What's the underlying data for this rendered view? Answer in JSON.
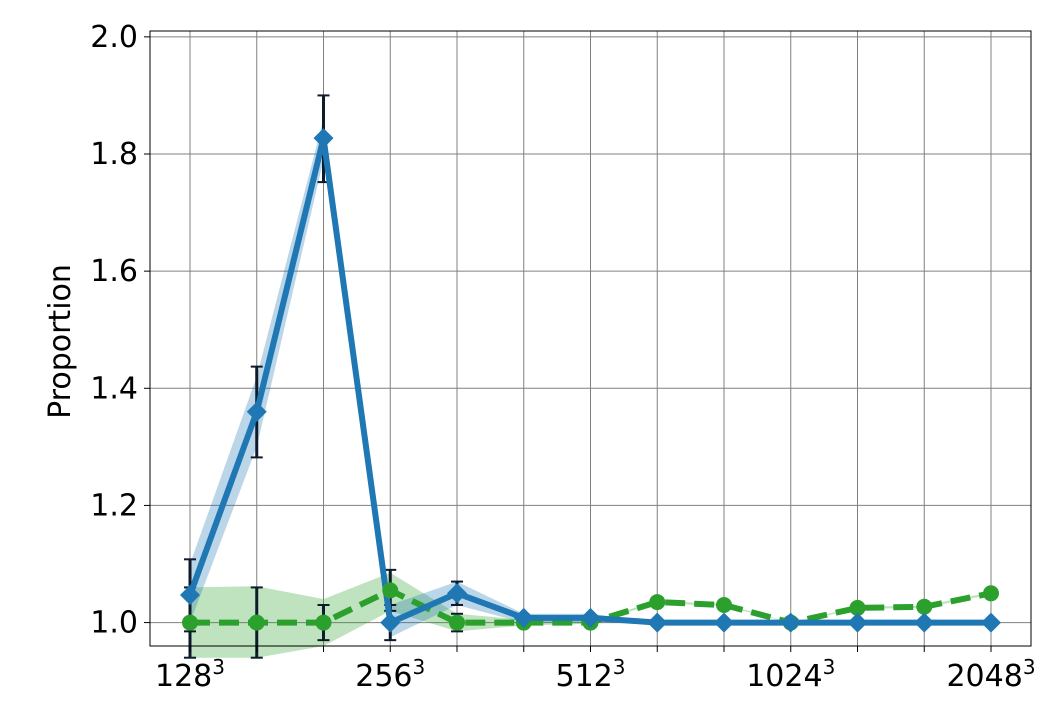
{
  "chart_data": {
    "type": "line",
    "title": "",
    "xlabel": "",
    "ylabel": "Proportion",
    "ylim": [
      0.96,
      2.01
    ],
    "yticks": [
      "1.0",
      "1.2",
      "1.4",
      "1.6",
      "1.8",
      "2.0"
    ],
    "ytick_values": [
      1.0,
      1.2,
      1.4,
      1.6,
      1.8,
      2.0
    ],
    "xtick_labels": [
      {
        "base": "128",
        "exp": "3",
        "index": 0
      },
      {
        "base": "256",
        "exp": "3",
        "index": 3
      },
      {
        "base": "512",
        "exp": "3",
        "index": 6
      },
      {
        "base": "1024",
        "exp": "3",
        "index": 9
      },
      {
        "base": "2048",
        "exp": "3",
        "index": 12
      }
    ],
    "n_points": 13,
    "grid": true,
    "series": [
      {
        "color": "#1f77b4",
        "line": "solid",
        "marker": "diamond",
        "values": [
          1.047,
          1.36,
          1.827,
          1.0,
          1.05,
          1.008,
          1.008,
          1.0,
          1.0,
          1.0,
          1.0,
          1.0,
          1.0
        ],
        "band_low": [
          1.0,
          1.3,
          1.79,
          0.975,
          1.03,
          1.0,
          1.0,
          1.0,
          1.0,
          1.0,
          1.0,
          1.0,
          1.0
        ],
        "band_high": [
          1.1,
          1.42,
          1.86,
          1.03,
          1.07,
          1.015,
          1.015,
          1.0,
          1.0,
          1.0,
          1.0,
          1.0,
          1.0
        ],
        "err_low": [
          0.985,
          1.282,
          1.752,
          0.97,
          1.03
        ],
        "err_high": [
          1.108,
          1.437,
          1.9,
          1.03,
          1.07
        ]
      },
      {
        "color": "#2ca02c",
        "line": "dashed",
        "marker": "circle",
        "values": [
          1.0,
          1.0,
          1.0,
          1.055,
          1.0,
          1.0,
          1.0,
          1.035,
          1.03,
          1.0,
          1.025,
          1.027,
          1.05
        ],
        "band_low": [
          0.94,
          0.94,
          0.96,
          1.02,
          0.985,
          0.995,
          0.998,
          1.033,
          1.028,
          1.0,
          1.023,
          1.025,
          1.048
        ],
        "band_high": [
          1.06,
          1.062,
          1.04,
          1.085,
          1.015,
          1.005,
          1.002,
          1.037,
          1.032,
          1.0,
          1.027,
          1.029,
          1.052
        ],
        "err_low": [
          0.94,
          0.94,
          0.97,
          1.02,
          0.985
        ],
        "err_high": [
          1.06,
          1.06,
          1.03,
          1.09,
          1.015
        ]
      }
    ]
  }
}
